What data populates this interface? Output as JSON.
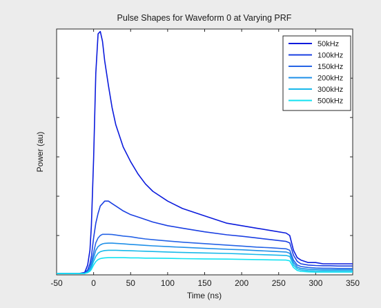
{
  "figure": {
    "background": "#ececec",
    "axes_background": "#ffffff"
  },
  "chart_data": {
    "type": "line",
    "title": "Pulse Shapes for Waveform 0 at Varying PRF",
    "xlabel": "Time (ns)",
    "ylabel": "Power (au)",
    "xlim": [
      -50,
      350
    ],
    "ylim": [
      0,
      1
    ],
    "x_ticks": [
      -50,
      0,
      50,
      100,
      150,
      200,
      250,
      300,
      350
    ],
    "x_tick_labels": [
      "-50",
      "0",
      "50",
      "100",
      "150",
      "200",
      "250",
      "300",
      "350"
    ],
    "y_ticks": [
      0,
      0.16,
      0.32,
      0.48,
      0.64,
      0.8
    ],
    "y_tick_labels": [
      "",
      "",
      "",
      "",
      "",
      ""
    ],
    "grid": false,
    "legend_position": "top-right",
    "x": [
      -50,
      -20,
      -12,
      -8,
      -5,
      -3,
      0,
      3,
      6,
      9,
      12,
      15,
      20,
      25,
      30,
      40,
      50,
      60,
      70,
      80,
      100,
      120,
      150,
      180,
      200,
      220,
      240,
      260,
      265,
      270,
      275,
      280,
      290,
      300,
      310,
      320,
      330,
      340,
      350
    ],
    "series": [
      {
        "name": "50kHz",
        "color": "#0a1adc",
        "values": [
          0.005,
          0.005,
          0.01,
          0.04,
          0.1,
          0.2,
          0.47,
          0.82,
          0.98,
          0.99,
          0.95,
          0.87,
          0.77,
          0.68,
          0.61,
          0.52,
          0.46,
          0.41,
          0.37,
          0.34,
          0.3,
          0.27,
          0.24,
          0.21,
          0.2,
          0.19,
          0.18,
          0.17,
          0.16,
          0.1,
          0.07,
          0.06,
          0.05,
          0.05,
          0.045,
          0.045,
          0.045,
          0.045,
          0.045
        ]
      },
      {
        "name": "100kHz",
        "color": "#1a3fe2",
        "values": [
          0.005,
          0.005,
          0.008,
          0.02,
          0.045,
          0.075,
          0.15,
          0.21,
          0.25,
          0.28,
          0.29,
          0.3,
          0.3,
          0.29,
          0.28,
          0.26,
          0.245,
          0.235,
          0.225,
          0.215,
          0.2,
          0.19,
          0.175,
          0.163,
          0.157,
          0.15,
          0.143,
          0.136,
          0.13,
          0.08,
          0.055,
          0.045,
          0.04,
          0.038,
          0.037,
          0.037,
          0.036,
          0.036,
          0.036
        ]
      },
      {
        "name": "150kHz",
        "color": "#2563e6",
        "values": [
          0.005,
          0.005,
          0.007,
          0.015,
          0.03,
          0.05,
          0.09,
          0.13,
          0.15,
          0.16,
          0.165,
          0.165,
          0.165,
          0.164,
          0.162,
          0.158,
          0.155,
          0.15,
          0.146,
          0.143,
          0.138,
          0.133,
          0.127,
          0.121,
          0.117,
          0.113,
          0.11,
          0.106,
          0.1,
          0.06,
          0.04,
          0.034,
          0.03,
          0.028,
          0.027,
          0.027,
          0.026,
          0.026,
          0.026
        ]
      },
      {
        "name": "200kHz",
        "color": "#1e8fe8",
        "values": [
          0.005,
          0.005,
          0.006,
          0.012,
          0.025,
          0.04,
          0.07,
          0.1,
          0.115,
          0.122,
          0.126,
          0.128,
          0.129,
          0.129,
          0.128,
          0.126,
          0.124,
          0.122,
          0.12,
          0.118,
          0.115,
          0.112,
          0.108,
          0.104,
          0.102,
          0.099,
          0.096,
          0.093,
          0.088,
          0.05,
          0.032,
          0.026,
          0.023,
          0.022,
          0.021,
          0.021,
          0.021,
          0.021,
          0.021
        ]
      },
      {
        "name": "300kHz",
        "color": "#17b8ea",
        "values": [
          0.005,
          0.005,
          0.006,
          0.01,
          0.02,
          0.03,
          0.055,
          0.075,
          0.088,
          0.094,
          0.097,
          0.099,
          0.1,
          0.1,
          0.1,
          0.099,
          0.098,
          0.097,
          0.096,
          0.095,
          0.093,
          0.091,
          0.089,
          0.087,
          0.085,
          0.083,
          0.081,
          0.079,
          0.075,
          0.04,
          0.025,
          0.02,
          0.017,
          0.016,
          0.016,
          0.016,
          0.016,
          0.016,
          0.016
        ]
      },
      {
        "name": "500kHz",
        "color": "#10e2f2",
        "values": [
          0.005,
          0.005,
          0.006,
          0.009,
          0.015,
          0.022,
          0.04,
          0.054,
          0.062,
          0.066,
          0.068,
          0.069,
          0.07,
          0.07,
          0.07,
          0.07,
          0.069,
          0.069,
          0.068,
          0.068,
          0.067,
          0.066,
          0.065,
          0.064,
          0.063,
          0.062,
          0.061,
          0.06,
          0.057,
          0.03,
          0.018,
          0.014,
          0.012,
          0.011,
          0.011,
          0.011,
          0.011,
          0.011,
          0.011
        ]
      }
    ]
  }
}
